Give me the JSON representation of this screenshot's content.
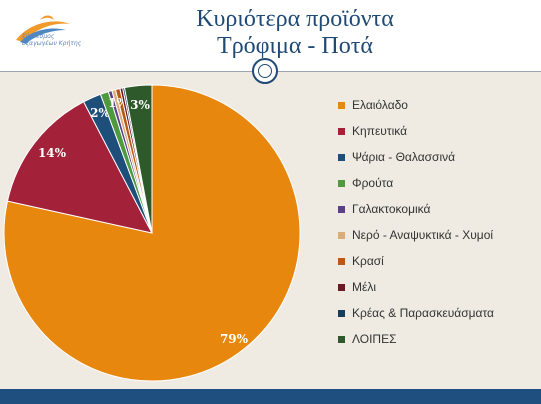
{
  "header": {
    "title_line1": "Κυριότερα προϊόντα",
    "title_line2": "Τρόφιμα - Ποτά",
    "logo_text_line1": "Σύνδεσμος",
    "logo_text_line2": "Εξαγωγέων Κρήτης"
  },
  "colors": {
    "title": "#1f4a75",
    "footer": "#1e4f7e",
    "background": "#efebe3"
  },
  "chart_data": {
    "type": "pie",
    "series": [
      {
        "name": "Ελαιόλαδο",
        "value": 79,
        "label": "79%",
        "color": "#e8870e"
      },
      {
        "name": "Κηπευτικά",
        "value": 14,
        "label": "14%",
        "color": "#a3223a"
      },
      {
        "name": "Ψάρια - Θαλασσινά",
        "value": 2,
        "label": "2%",
        "color": "#1d4f7a"
      },
      {
        "name": "Φρούτα",
        "value": 0.9,
        "label": "",
        "color": "#4f9a3f"
      },
      {
        "name": "Γαλακτοκομικά",
        "value": 0.4,
        "label": "",
        "color": "#5b3f8a"
      },
      {
        "name": "Νερό - Αναψυκτικά - Χυμοί",
        "value": 0.4,
        "label": "",
        "color": "#d9ac7a"
      },
      {
        "name": "Κρασί",
        "value": 0.5,
        "label": "1%",
        "color": "#b85a14"
      },
      {
        "name": "Μέλι",
        "value": 0.3,
        "label": "",
        "color": "#6e1822"
      },
      {
        "name": "Κρέας & Παρασκευάσματα",
        "value": 0.2,
        "label": "",
        "color": "#153e5c"
      },
      {
        "name": "ΛΟΙΠΕΣ",
        "value": 3,
        "label": "3%",
        "color": "#2e5a2b"
      }
    ],
    "legend_position": "right"
  }
}
